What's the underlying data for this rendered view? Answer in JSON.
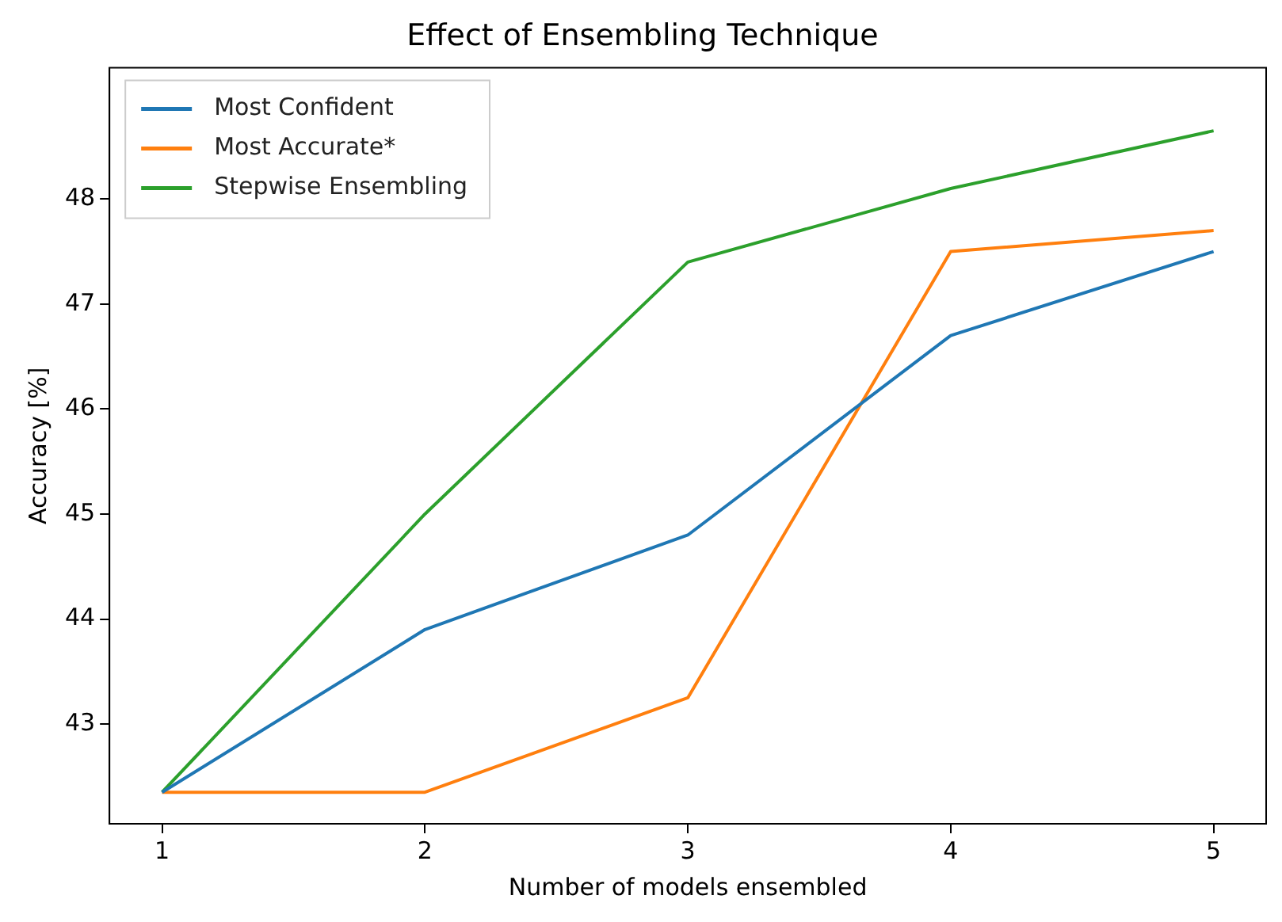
{
  "chart_data": {
    "type": "line",
    "title": "Effect of Ensembling Technique",
    "xlabel": "Number of models ensembled",
    "ylabel": "Accuracy [%]",
    "x": [
      1,
      2,
      3,
      4,
      5
    ],
    "xlim": [
      0.8,
      5.2
    ],
    "xticks": [
      1,
      2,
      3,
      4,
      5
    ],
    "ylim": [
      42.05,
      49.25
    ],
    "yticks": [
      43,
      44,
      45,
      46,
      47,
      48
    ],
    "series": [
      {
        "name": "Most Confident",
        "color": "#1f77b4",
        "values": [
          42.35,
          43.9,
          44.8,
          46.7,
          47.5
        ]
      },
      {
        "name": "Most Accurate*",
        "color": "#ff7f0e",
        "values": [
          42.35,
          42.35,
          43.25,
          47.5,
          47.7
        ]
      },
      {
        "name": "Stepwise Ensembling",
        "color": "#2ca02c",
        "values": [
          42.35,
          45.0,
          47.4,
          48.1,
          48.65
        ]
      }
    ],
    "legend": "top left",
    "grid": false,
    "marker": "none",
    "line_style": "solid"
  }
}
